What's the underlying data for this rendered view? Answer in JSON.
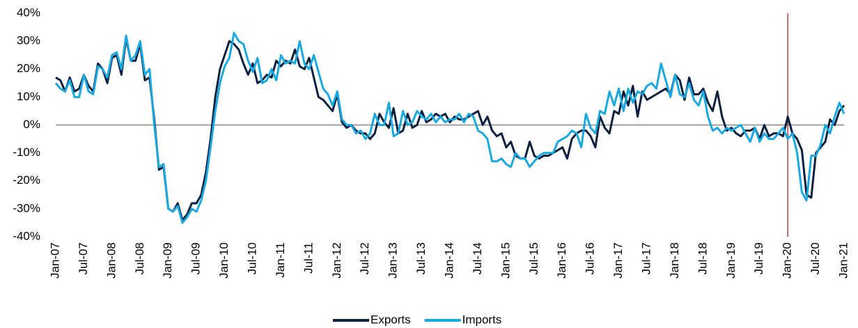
{
  "chart_data": {
    "type": "line",
    "categories": [
      "Jan-07",
      null,
      null,
      null,
      null,
      null,
      "Jul-07",
      null,
      null,
      null,
      null,
      null,
      "Jan-08",
      null,
      null,
      null,
      null,
      null,
      "Jul-08",
      null,
      null,
      null,
      null,
      null,
      "Jan-09",
      null,
      null,
      null,
      null,
      null,
      "Jul-09",
      null,
      null,
      null,
      null,
      null,
      "Jan-10",
      null,
      null,
      null,
      null,
      null,
      "Jul-10",
      null,
      null,
      null,
      null,
      null,
      "Jan-11",
      null,
      null,
      null,
      null,
      null,
      "Jul-11",
      null,
      null,
      null,
      null,
      null,
      "Jan-12",
      null,
      null,
      null,
      null,
      null,
      "Jul-12",
      null,
      null,
      null,
      null,
      null,
      "Jan-13",
      null,
      null,
      null,
      null,
      null,
      "Jul-13",
      null,
      null,
      null,
      null,
      null,
      "Jan-14",
      null,
      null,
      null,
      null,
      null,
      "Jul-14",
      null,
      null,
      null,
      null,
      null,
      "Jan-15",
      null,
      null,
      null,
      null,
      null,
      "Jul-15",
      null,
      null,
      null,
      null,
      null,
      "Jan-16",
      null,
      null,
      null,
      null,
      null,
      "Jul-16",
      null,
      null,
      null,
      null,
      null,
      "Jan-17",
      null,
      null,
      null,
      null,
      null,
      "Jul-17",
      null,
      null,
      null,
      null,
      null,
      "Jan-18",
      null,
      null,
      null,
      null,
      null,
      "Jul-18",
      null,
      null,
      null,
      null,
      null,
      "Jan-19",
      null,
      null,
      null,
      null,
      null,
      "Jul-19",
      null,
      null,
      null,
      null,
      null,
      "Jan-20",
      null,
      null,
      null,
      null,
      null,
      "Jul-20",
      null,
      null,
      null,
      null,
      null,
      "Jan-21"
    ],
    "series": [
      {
        "name": "Exports",
        "color": "#0b1f3f",
        "values": [
          17,
          16,
          12,
          17,
          12,
          13,
          18,
          14,
          12,
          22,
          20,
          15,
          24,
          25,
          18,
          31,
          23,
          23,
          29,
          16,
          17,
          2,
          -16,
          -15,
          -30,
          -31,
          -28,
          -34,
          -32,
          -28,
          -28,
          -25,
          -17,
          -5,
          10,
          20,
          25,
          30,
          29,
          27,
          22,
          18,
          22,
          15,
          16,
          18,
          17,
          23,
          21,
          23,
          22,
          27,
          21,
          20,
          24,
          17,
          10,
          9,
          7,
          5,
          11,
          1,
          -1,
          0,
          -2,
          -3,
          -3,
          -5,
          -3,
          4,
          1,
          -1,
          6,
          -3,
          -2,
          4,
          -1,
          0,
          5,
          1,
          2,
          4,
          3,
          4,
          1,
          3,
          2,
          2,
          3,
          4,
          5,
          0,
          3,
          -2,
          -4,
          -3,
          -8,
          -6,
          -11,
          -12,
          -12,
          -6,
          -11,
          -12,
          -11,
          -11,
          -10,
          -9,
          -8,
          -12,
          -5,
          -3,
          -2,
          -2,
          -4,
          -8,
          3,
          -1,
          -3,
          5,
          4,
          12,
          7,
          14,
          3,
          12,
          9,
          10,
          11,
          12,
          13,
          11,
          18,
          16,
          9,
          17,
          11,
          11,
          13,
          8,
          5,
          12,
          3,
          -2,
          -1,
          -3,
          -4,
          -2,
          -2,
          -1,
          -5,
          0,
          -4,
          -3,
          -3,
          -4,
          3,
          -3,
          -5,
          -9,
          -25,
          -26,
          -10,
          -8,
          -6,
          2,
          0,
          5,
          7
        ]
      },
      {
        "name": "Imports",
        "color": "#17a9e1",
        "values": [
          15,
          13,
          12,
          16,
          10,
          10,
          18,
          12,
          11,
          21,
          20,
          17,
          25,
          26,
          20,
          32,
          23,
          25,
          30,
          18,
          20,
          0,
          -15,
          -14,
          -30,
          -31,
          -29,
          -35,
          -33,
          -30,
          -31,
          -27,
          -20,
          -8,
          5,
          15,
          21,
          24,
          33,
          30,
          29,
          23,
          19,
          24,
          15,
          16,
          20,
          16,
          25,
          22,
          23,
          22,
          30,
          22,
          20,
          25,
          19,
          13,
          11,
          7,
          12,
          2,
          0,
          0,
          -3,
          -2,
          -5,
          -3,
          4,
          0,
          0,
          8,
          -4,
          -3,
          5,
          0,
          1,
          5,
          3,
          2,
          4,
          1,
          3,
          1,
          2,
          2,
          4,
          1,
          4,
          3,
          -2,
          -3,
          -5,
          -13,
          -13,
          -12,
          -14,
          -15,
          -10,
          -12,
          -12,
          -15,
          -13,
          -11,
          -10,
          -10,
          -10,
          -6,
          -5,
          -4,
          -2,
          -3,
          -8,
          4,
          -1,
          -3,
          5,
          4,
          12,
          7,
          13,
          5,
          13,
          8,
          12,
          11,
          14,
          15,
          13,
          22,
          16,
          10,
          18,
          11,
          10,
          15,
          9,
          7,
          12,
          3,
          -2,
          -1,
          -3,
          -1,
          -2,
          -1,
          0,
          -3,
          -6,
          -1,
          -6,
          -3,
          -5,
          -5,
          -3,
          -1,
          -5,
          -3,
          -10,
          -24,
          -27,
          -11,
          -11,
          -7,
          0,
          -3,
          3,
          8,
          4
        ]
      }
    ],
    "ylim": [
      -40,
      40
    ],
    "yticks": [
      {
        "value": -40,
        "label": "-40%"
      },
      {
        "value": -30,
        "label": "-30%"
      },
      {
        "value": -20,
        "label": "-20%"
      },
      {
        "value": -10,
        "label": "-10%"
      },
      {
        "value": 0,
        "label": "0%"
      },
      {
        "value": 10,
        "label": "10%"
      },
      {
        "value": 20,
        "label": "20%"
      },
      {
        "value": 30,
        "label": "30%"
      },
      {
        "value": 40,
        "label": "40%"
      }
    ],
    "vline": "Jan-20",
    "vline_color": "#8b1a1a",
    "legend": "bottom"
  }
}
